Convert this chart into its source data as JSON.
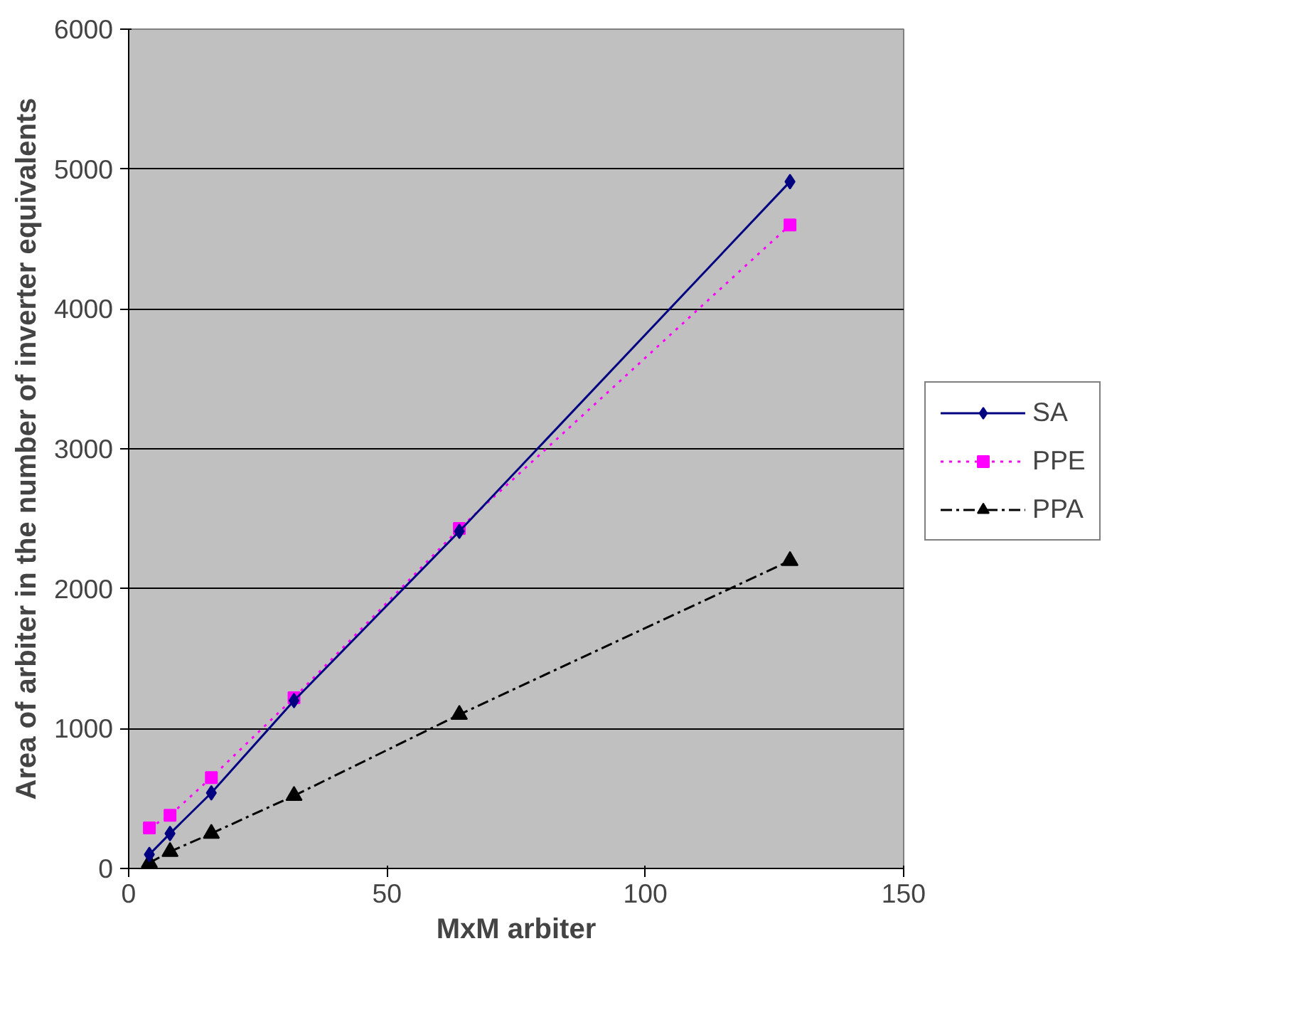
{
  "chart_data": {
    "type": "line",
    "xlabel": "MxM arbiter",
    "ylabel": "Area of arbiter in the number of inverter equivalents",
    "x": [
      4,
      8,
      16,
      32,
      64,
      128
    ],
    "series": [
      {
        "name": "SA",
        "color": "#000080",
        "marker": "diamond",
        "line_style": "solid",
        "values": [
          100,
          250,
          540,
          1200,
          2410,
          4910
        ]
      },
      {
        "name": "PPE",
        "color": "#ff00ff",
        "marker": "square",
        "line_style": "dotted",
        "values": [
          290,
          380,
          650,
          1220,
          2430,
          4600
        ]
      },
      {
        "name": "PPA",
        "color": "#000000",
        "marker": "triangle",
        "line_style": "dashed",
        "values": [
          40,
          120,
          250,
          520,
          1100,
          2200
        ]
      }
    ],
    "xlim": [
      0,
      150
    ],
    "xticks": [
      0,
      50,
      100,
      150
    ],
    "ylim": [
      0,
      6000
    ],
    "yticks": [
      0,
      1000,
      2000,
      3000,
      4000,
      5000,
      6000
    ],
    "grid": "y",
    "legend": "right"
  }
}
